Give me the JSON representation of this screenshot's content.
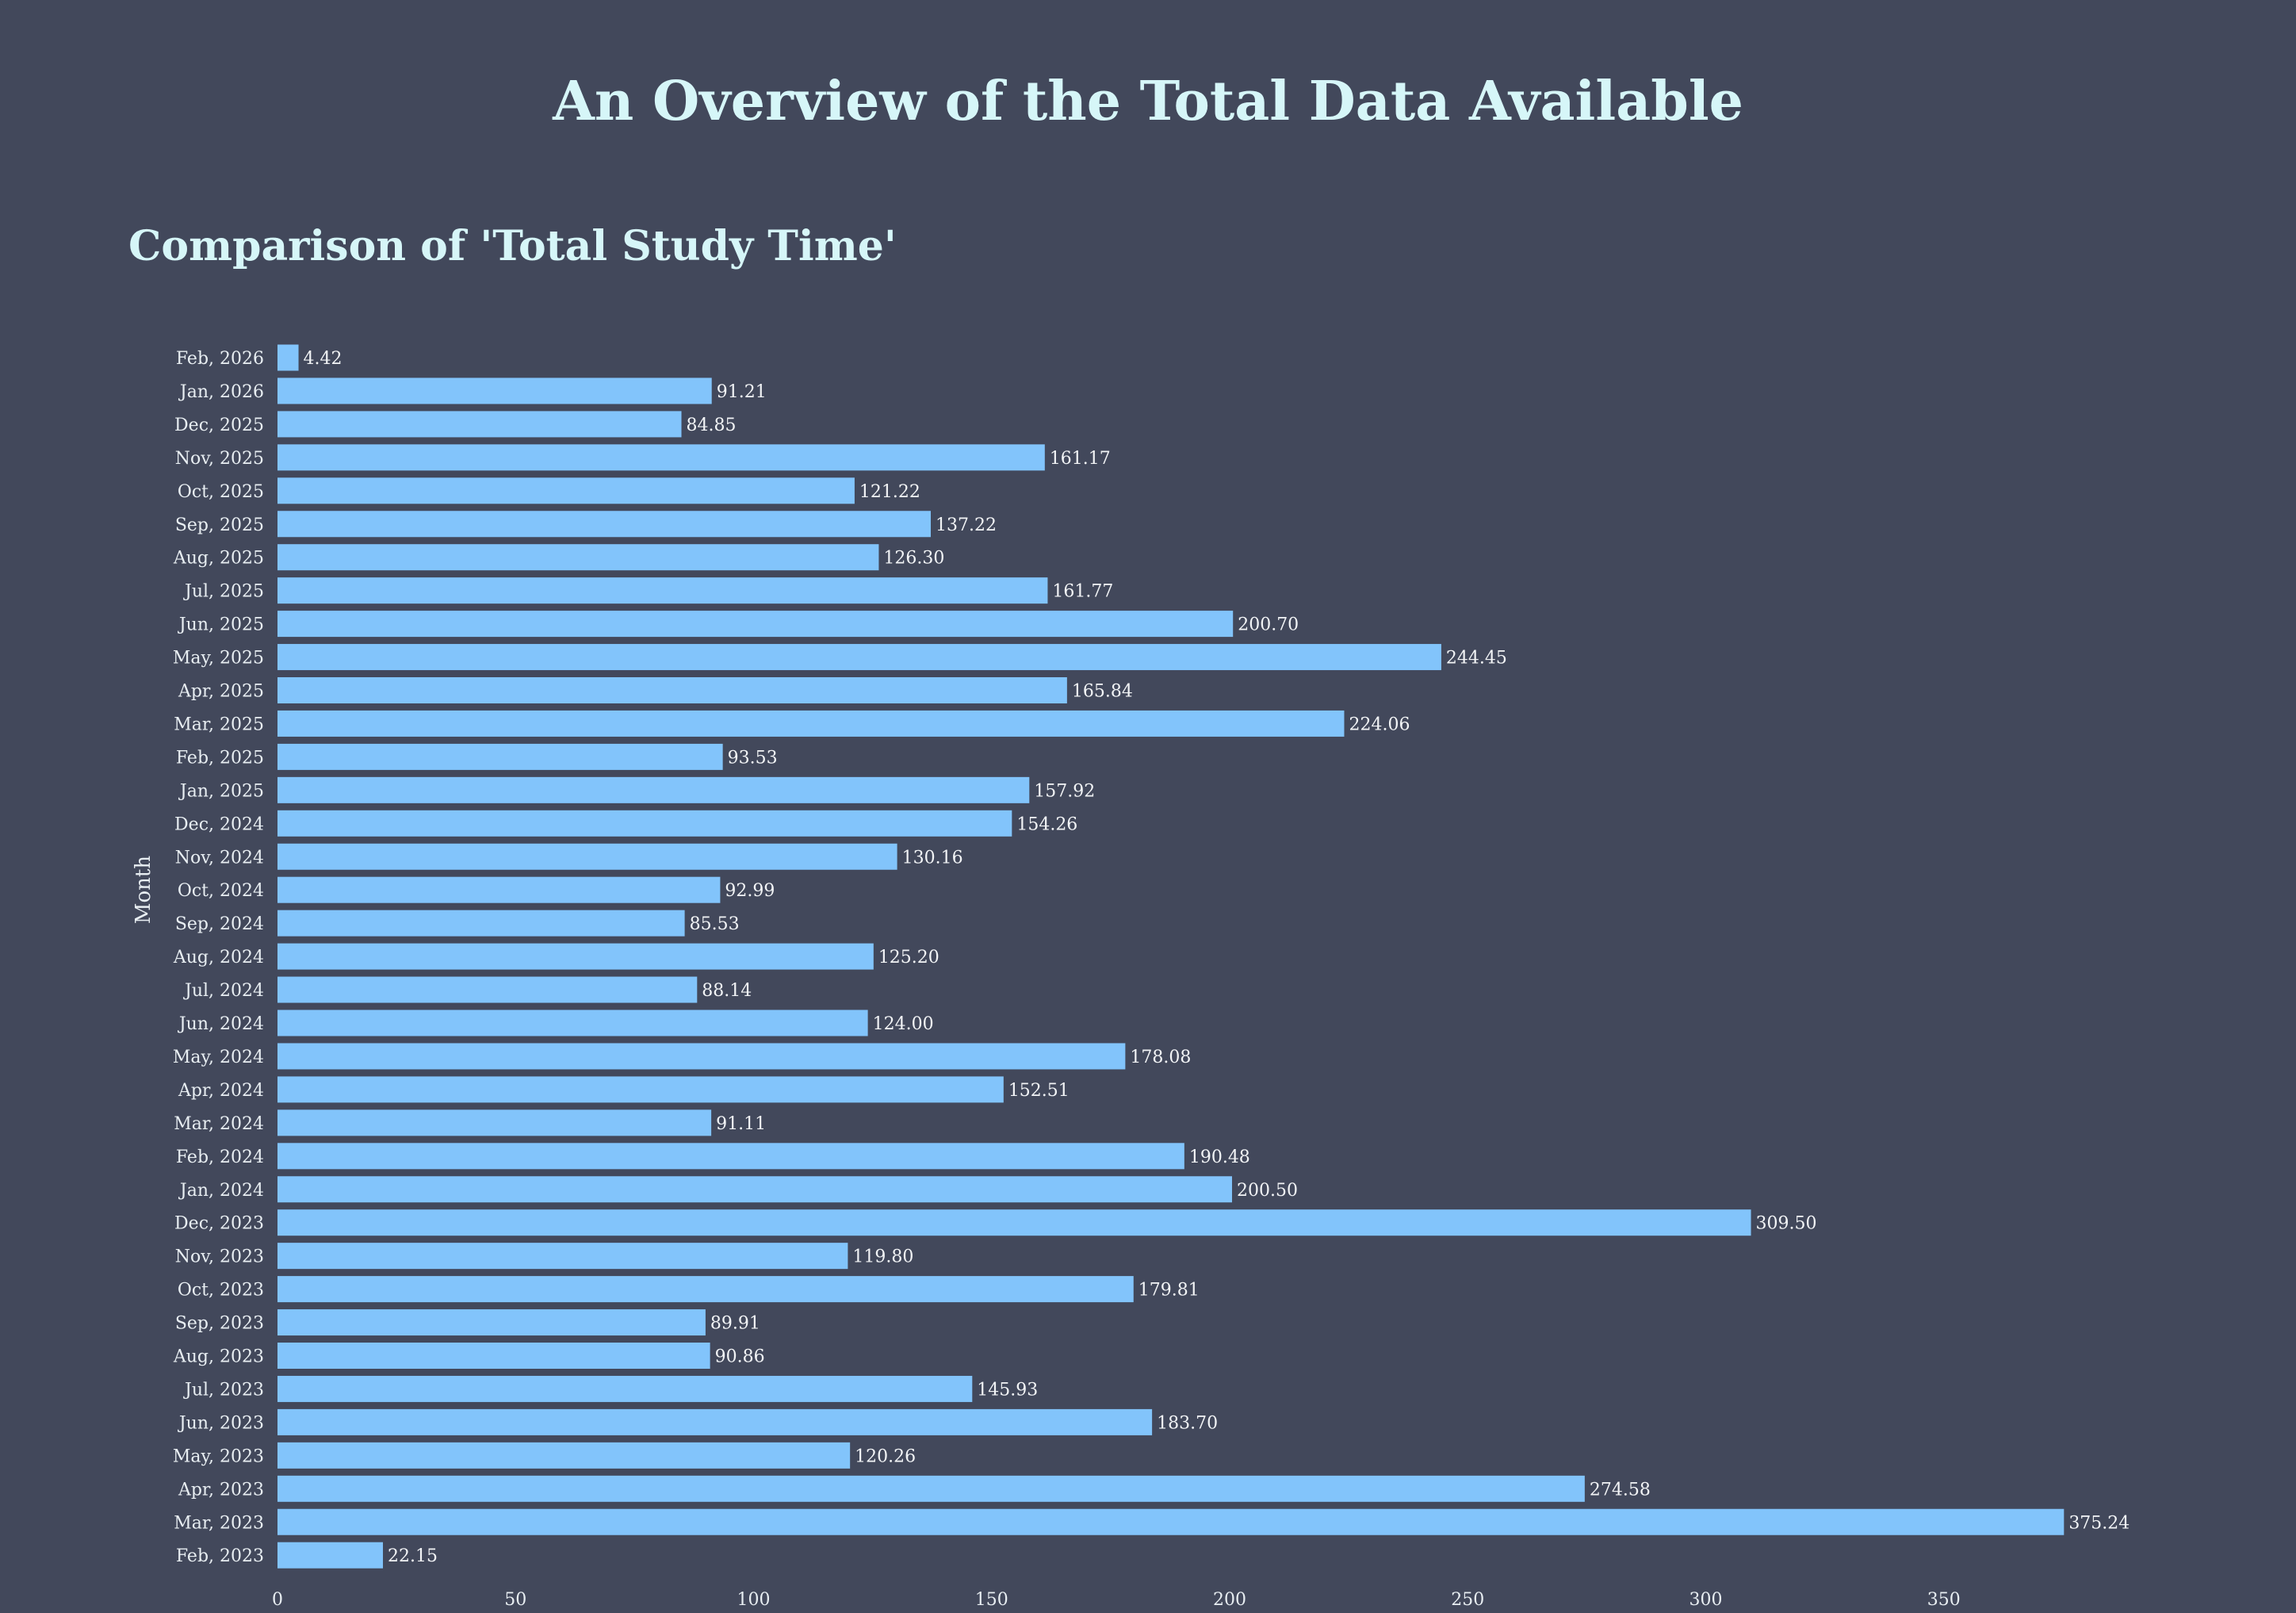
{
  "page": {
    "title": "An Overview of the Total Data Available"
  },
  "colors": {
    "background": "#42485b",
    "title": "#d6f6f8",
    "bar": "#82c4fb",
    "text": "#e8eef2"
  },
  "chart_data": {
    "type": "bar",
    "orientation": "horizontal",
    "title": "Comparison of 'Total Study Time'",
    "xlabel": "",
    "ylabel": "Month",
    "xlim": [
      0,
      380
    ],
    "x_ticks": [
      0,
      50,
      100,
      150,
      200,
      250,
      300,
      350
    ],
    "grid": false,
    "categories": [
      "Feb, 2023",
      "Mar, 2023",
      "Apr, 2023",
      "May, 2023",
      "Jun, 2023",
      "Jul, 2023",
      "Aug, 2023",
      "Sep, 2023",
      "Oct, 2023",
      "Nov, 2023",
      "Dec, 2023",
      "Jan, 2024",
      "Feb, 2024",
      "Mar, 2024",
      "Apr, 2024",
      "May, 2024",
      "Jun, 2024",
      "Jul, 2024",
      "Aug, 2024",
      "Sep, 2024",
      "Oct, 2024",
      "Nov, 2024",
      "Dec, 2024",
      "Jan, 2025",
      "Feb, 2025",
      "Mar, 2025",
      "Apr, 2025",
      "May, 2025",
      "Jun, 2025",
      "Jul, 2025",
      "Aug, 2025",
      "Sep, 2025",
      "Oct, 2025",
      "Nov, 2025",
      "Dec, 2025",
      "Jan, 2026",
      "Feb, 2026"
    ],
    "values": [
      22.15,
      375.24,
      274.58,
      120.26,
      183.7,
      145.93,
      90.86,
      89.91,
      179.81,
      119.8,
      309.5,
      200.5,
      190.48,
      91.11,
      152.51,
      178.08,
      124.0,
      88.14,
      125.2,
      85.53,
      92.99,
      130.16,
      154.26,
      157.92,
      93.53,
      224.06,
      165.84,
      244.45,
      200.7,
      161.77,
      126.3,
      137.22,
      121.22,
      161.17,
      84.85,
      91.21,
      4.42
    ],
    "value_labels": [
      "22.15",
      "375.24",
      "274.58",
      "120.26",
      "183.70",
      "145.93",
      "90.86",
      "89.91",
      "179.81",
      "119.80",
      "309.50",
      "200.50",
      "190.48",
      "91.11",
      "152.51",
      "178.08",
      "124.00",
      "88.14",
      "125.20",
      "85.53",
      "92.99",
      "130.16",
      "154.26",
      "157.92",
      "93.53",
      "224.06",
      "165.84",
      "244.45",
      "200.70",
      "161.77",
      "126.30",
      "137.22",
      "121.22",
      "161.17",
      "84.85",
      "91.21",
      "4.42"
    ]
  }
}
